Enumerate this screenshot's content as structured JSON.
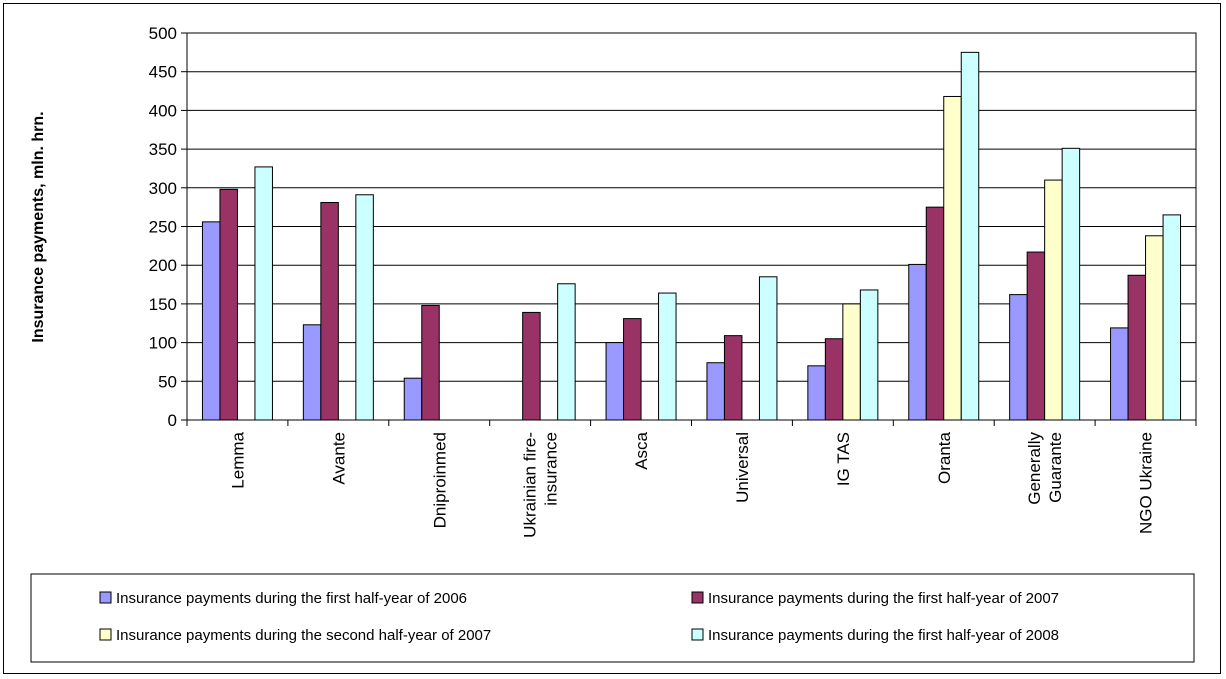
{
  "chart_data": {
    "type": "bar",
    "title": "",
    "xlabel": "",
    "ylabel": "Insurance payments, mln. hrn.",
    "ylim": [
      0,
      500
    ],
    "yticks": [
      0,
      50,
      100,
      150,
      200,
      250,
      300,
      350,
      400,
      450,
      500
    ],
    "grid": true,
    "legend_position": "bottom",
    "categories": [
      [
        "Lemma"
      ],
      [
        "Avante"
      ],
      [
        "Dniproinmed"
      ],
      [
        "Ukrainian fire-",
        "insurance"
      ],
      [
        "Asca"
      ],
      [
        "Universal"
      ],
      [
        "IG TAS"
      ],
      [
        "Oranta"
      ],
      [
        "Generally",
        "Guarante"
      ],
      [
        "NGO Ukraine"
      ]
    ],
    "series": [
      {
        "name": "Insurance payments during the first half-year of 2006",
        "color": "#9999ff",
        "values": [
          256,
          123,
          54,
          null,
          100,
          74,
          70,
          201,
          162,
          119
        ]
      },
      {
        "name": "Insurance payments during the first half-year of 2007",
        "color": "#993366",
        "values": [
          298,
          281,
          148,
          139,
          131,
          109,
          105,
          275,
          217,
          187
        ]
      },
      {
        "name": "Insurance payments during the second half-year of 2007",
        "color": "#ffffcc",
        "values": [
          null,
          null,
          null,
          null,
          null,
          null,
          150,
          418,
          310,
          238
        ]
      },
      {
        "name": "Insurance payments during the first half-year of 2008",
        "color": "#ccffff",
        "values": [
          327,
          291,
          null,
          176,
          164,
          185,
          168,
          475,
          351,
          265
        ]
      }
    ]
  }
}
